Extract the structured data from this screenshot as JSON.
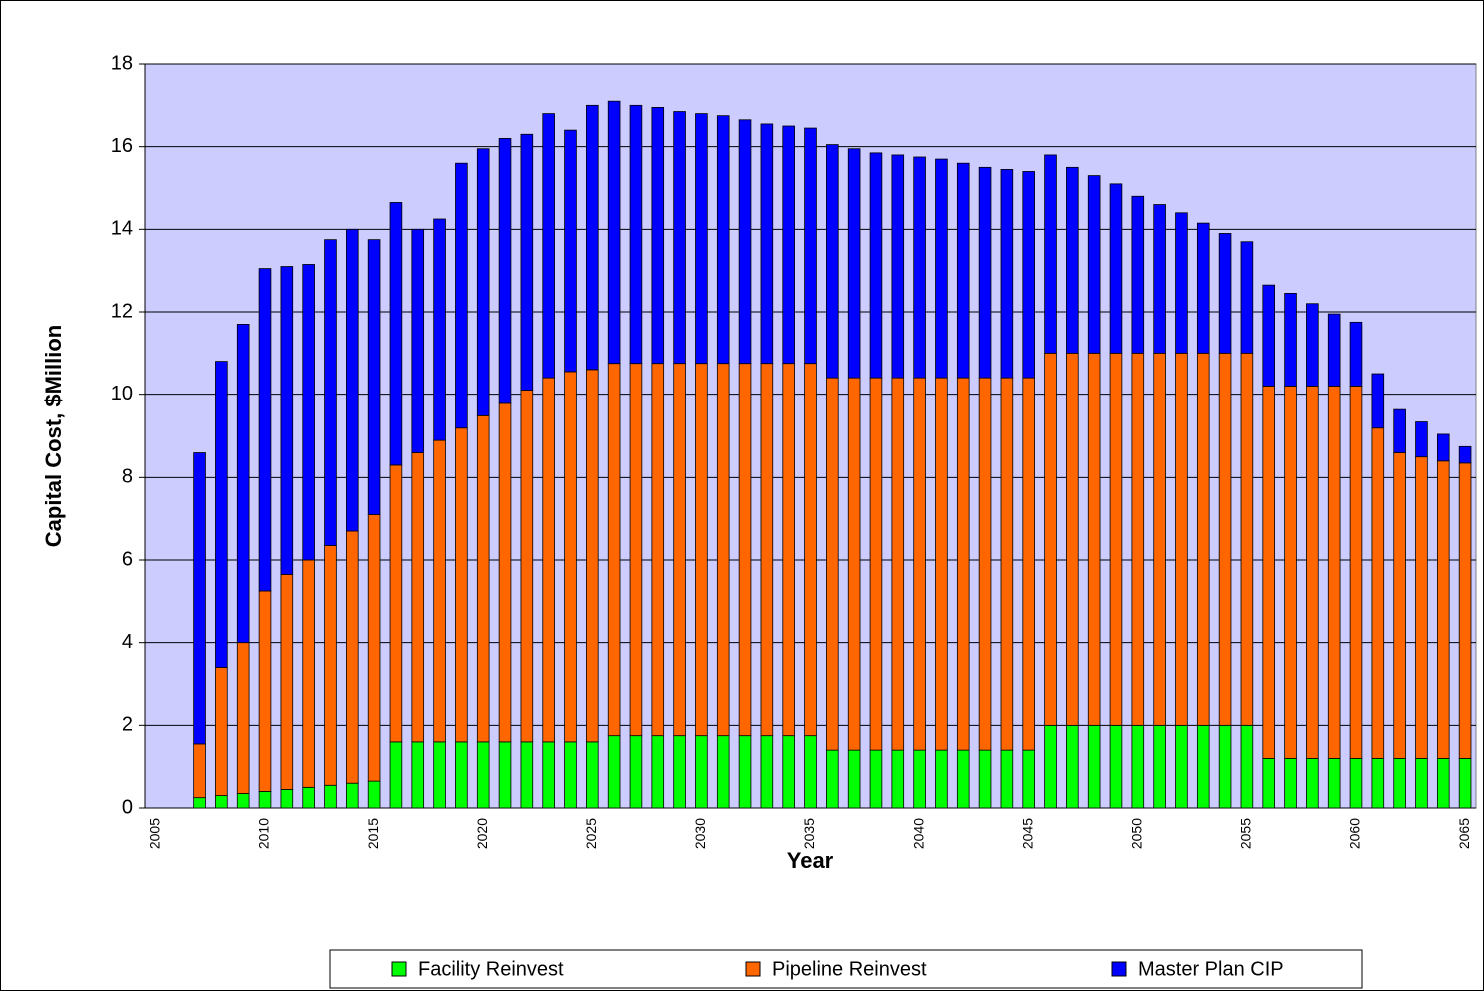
{
  "chart_data": {
    "type": "stacked-bar",
    "xlabel": "Year",
    "ylabel": "Capital Cost, $Million",
    "categories": [
      "2005",
      null,
      null,
      null,
      null,
      "2010",
      null,
      null,
      null,
      null,
      "2015",
      null,
      null,
      null,
      null,
      "2020",
      null,
      null,
      null,
      null,
      "2025",
      null,
      null,
      null,
      null,
      "2030",
      null,
      null,
      null,
      null,
      "2035",
      null,
      null,
      null,
      null,
      "2040",
      null,
      null,
      null,
      null,
      "2045",
      null,
      null,
      null,
      null,
      "2050",
      null,
      null,
      null,
      null,
      "2055",
      null,
      null,
      null,
      null,
      "2060",
      null,
      null,
      null,
      null,
      "2065"
    ],
    "series": [
      {
        "name": "Facility Reinvest",
        "color": "#00ff00",
        "values": [
          0,
          0,
          0.25,
          0.3,
          0.35,
          0.4,
          0.45,
          0.5,
          0.55,
          0.6,
          0.65,
          1.6,
          1.6,
          1.6,
          1.6,
          1.6,
          1.6,
          1.6,
          1.6,
          1.6,
          1.6,
          1.75,
          1.75,
          1.75,
          1.75,
          1.75,
          1.75,
          1.75,
          1.75,
          1.75,
          1.75,
          1.4,
          1.4,
          1.4,
          1.4,
          1.4,
          1.4,
          1.4,
          1.4,
          1.4,
          1.4,
          2,
          2,
          2,
          2,
          2,
          2,
          2,
          2,
          2,
          2,
          1.2,
          1.2,
          1.2,
          1.2,
          1.2,
          1.2,
          1.2,
          1.2,
          1.2,
          1.2
        ]
      },
      {
        "name": "Pipeline Reinvest",
        "color": "#ff6600",
        "values": [
          0,
          0,
          1.3,
          3.1,
          3.65,
          4.85,
          5.2,
          5.5,
          5.8,
          6.1,
          6.45,
          6.7,
          7,
          7.3,
          7.6,
          7.9,
          8.2,
          8.5,
          8.8,
          8.95,
          9,
          9,
          9,
          9,
          9,
          9,
          9,
          9,
          9,
          9,
          9,
          9,
          9,
          9,
          9,
          9,
          9,
          9,
          9,
          9,
          9,
          9,
          9,
          9,
          9,
          9,
          9,
          9,
          9,
          9,
          9,
          9,
          9,
          9,
          9,
          9,
          8,
          7.4,
          7.3,
          7.2,
          7.15
        ]
      },
      {
        "name": "Master Plan CIP",
        "color": "#0000ff",
        "values": [
          0,
          0,
          7.05,
          7.4,
          7.7,
          7.8,
          7.45,
          7.15,
          7.4,
          7.3,
          6.65,
          6.35,
          5.4,
          5.35,
          6.4,
          6.45,
          6.4,
          6.2,
          6.4,
          5.85,
          6.4,
          6.35,
          6.25,
          6.2,
          6.1,
          6.05,
          6,
          5.9,
          5.8,
          5.75,
          5.7,
          5.65,
          5.55,
          5.45,
          5.4,
          5.35,
          5.3,
          5.2,
          5.1,
          5.05,
          5,
          4.8,
          4.5,
          4.3,
          4.1,
          3.8,
          3.6,
          3.4,
          3.15,
          2.9,
          2.7,
          2.45,
          2.25,
          2,
          1.75,
          1.55,
          1.3,
          1.05,
          0.85,
          0.65,
          0.4
        ]
      }
    ],
    "ylim": [
      0,
      18
    ],
    "yticks": [
      0,
      2,
      4,
      6,
      8,
      10,
      12,
      14,
      16,
      18
    ],
    "grid": true,
    "legend": "bottom",
    "plot_background": "#ccccff"
  }
}
